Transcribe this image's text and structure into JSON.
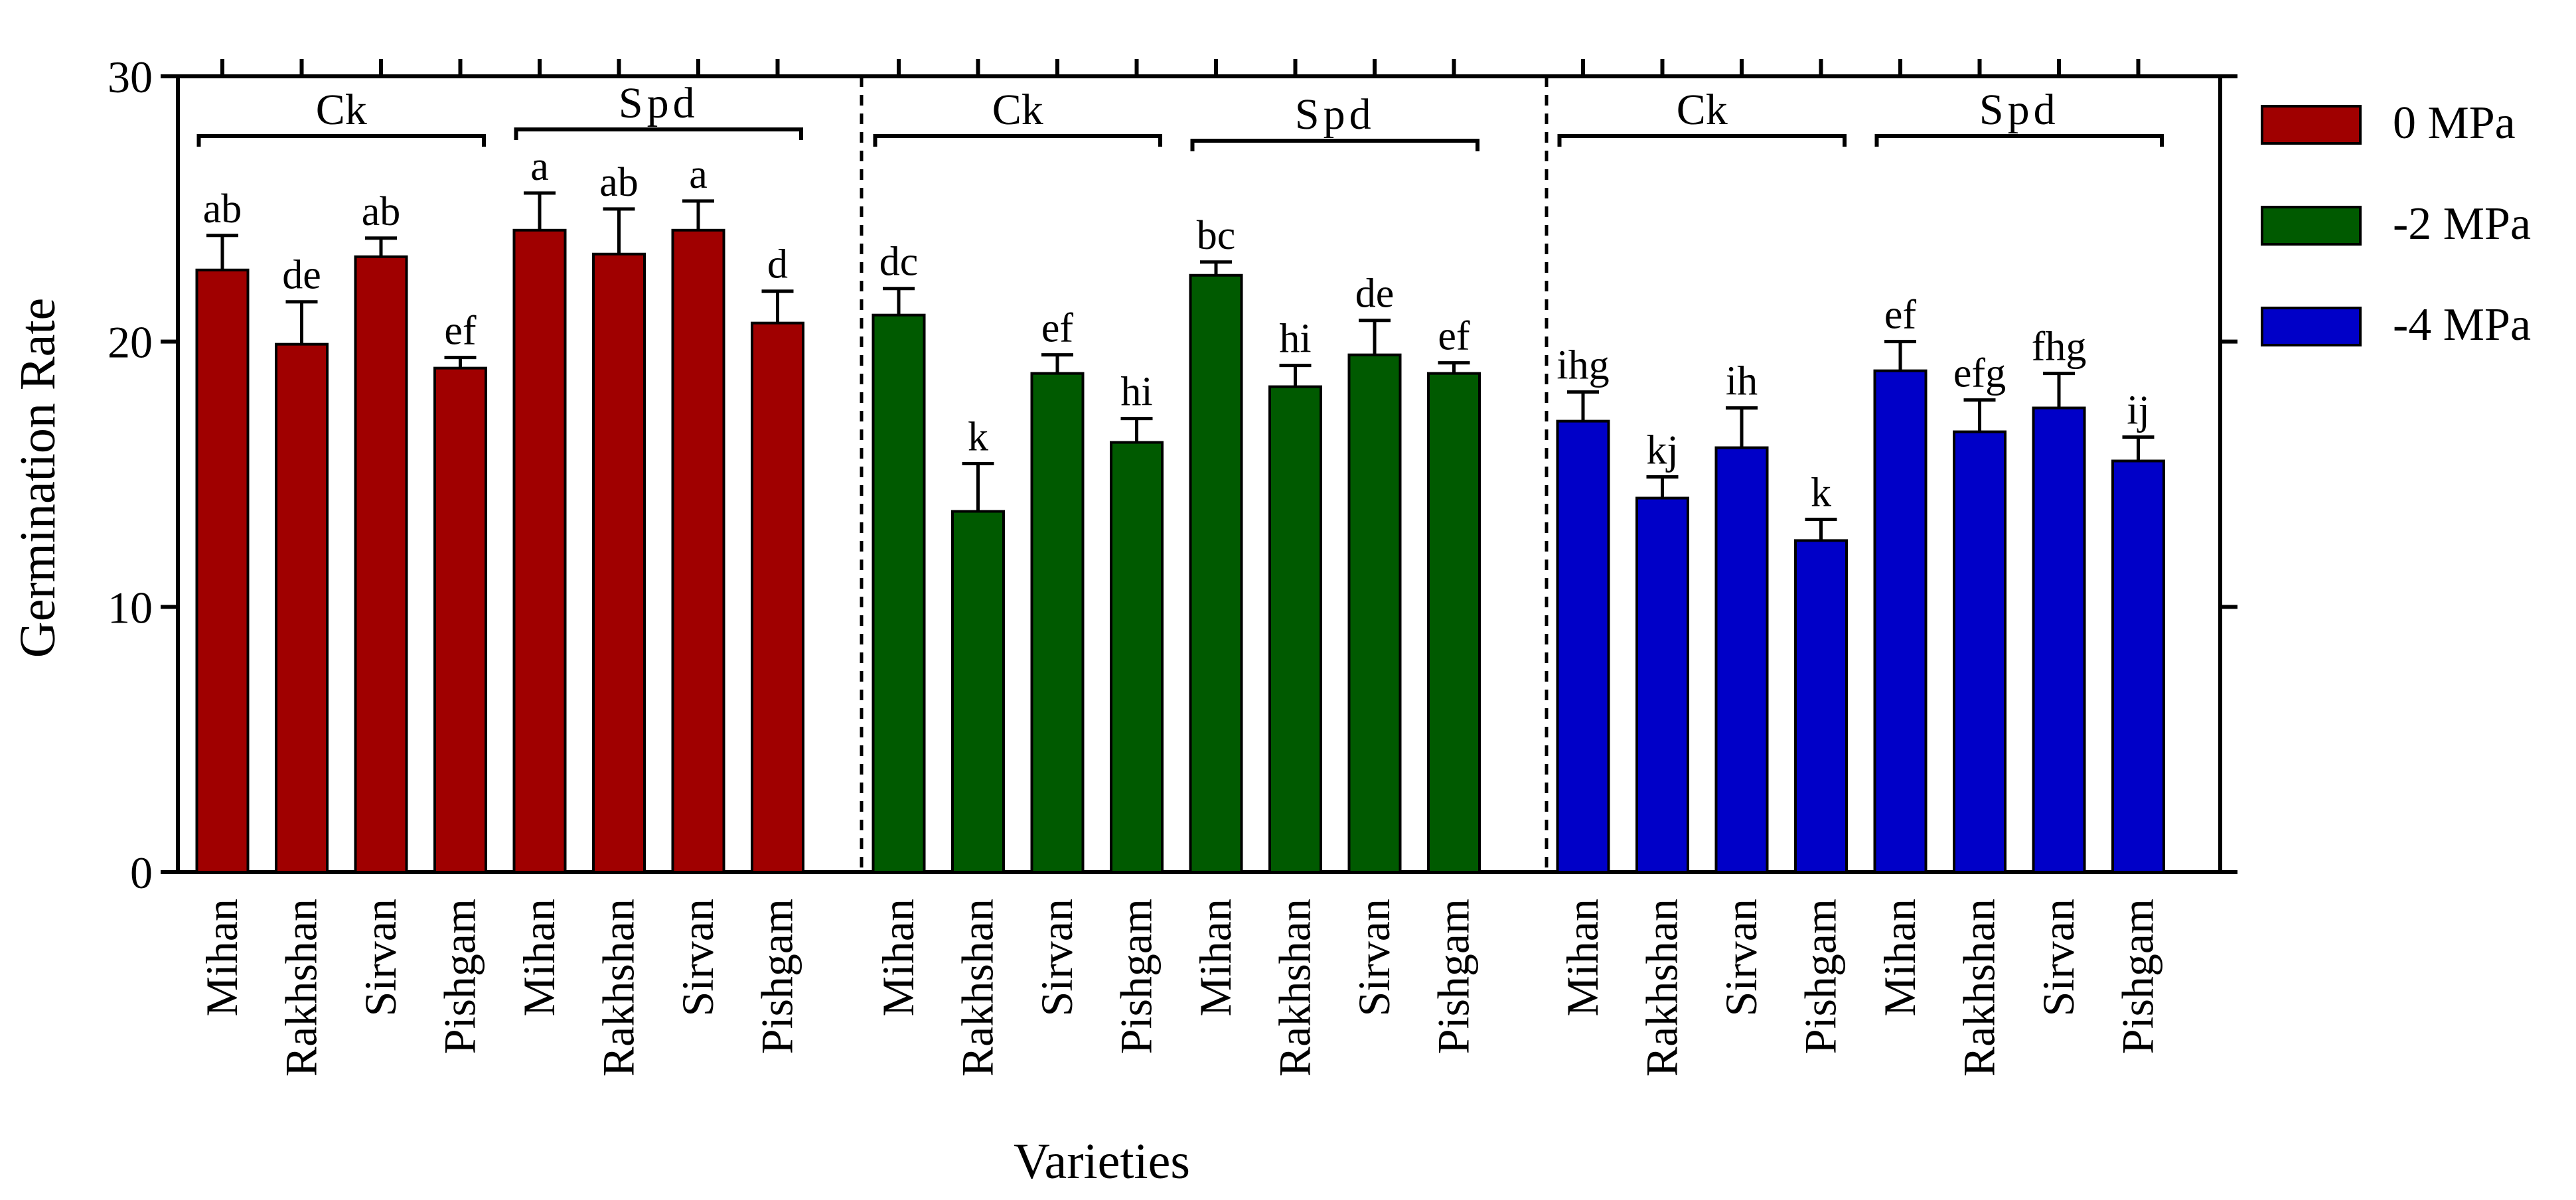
{
  "chart_data": {
    "type": "bar",
    "title": "",
    "ylabel": "Germination Rate",
    "xlabel": "Varieties",
    "ylim": [
      0,
      30
    ],
    "yticks": [
      0,
      10,
      20,
      30
    ],
    "grid": false,
    "legend_position": "top-right",
    "categories": [
      "Mihan",
      "Rakhshan",
      "Sirvan",
      "Pishgam"
    ],
    "treatment_labels": [
      "Ck",
      "Spd"
    ],
    "colors": {
      "0 MPa": "#a00000",
      "-2 MPa": "#005a00",
      "-4 MPa": "#0000c8"
    },
    "series": [
      {
        "name": "0 MPa",
        "groups": [
          {
            "treatment": "Ck",
            "values": [
              22.7,
              19.9,
              23.2,
              19.0
            ],
            "errors": [
              1.3,
              1.6,
              0.7,
              0.4
            ],
            "letters": [
              "ab",
              "de",
              "ab",
              "ef"
            ]
          },
          {
            "treatment": "Spd",
            "values": [
              24.2,
              23.3,
              24.2,
              20.7
            ],
            "errors": [
              1.4,
              1.7,
              1.1,
              1.2
            ],
            "letters": [
              "a",
              "ab",
              "a",
              "d"
            ]
          }
        ]
      },
      {
        "name": "-2 MPa",
        "groups": [
          {
            "treatment": "Ck",
            "values": [
              21.0,
              13.6,
              18.8,
              16.2
            ],
            "errors": [
              1.0,
              1.8,
              0.7,
              0.9
            ],
            "letters": [
              "dc",
              "k",
              "ef",
              "hi"
            ]
          },
          {
            "treatment": "Spd",
            "values": [
              22.5,
              18.3,
              19.5,
              18.8
            ],
            "errors": [
              0.5,
              0.8,
              1.3,
              0.4
            ],
            "letters": [
              "bc",
              "hi",
              "de",
              "ef"
            ]
          }
        ]
      },
      {
        "name": "-4 MPa",
        "groups": [
          {
            "treatment": "Ck",
            "values": [
              17.0,
              14.1,
              16.0,
              12.5
            ],
            "errors": [
              1.1,
              0.8,
              1.5,
              0.8
            ],
            "letters": [
              "ihg",
              "kj",
              "ih",
              "k"
            ]
          },
          {
            "treatment": "Spd",
            "values": [
              18.9,
              16.6,
              17.5,
              15.5
            ],
            "errors": [
              1.1,
              1.2,
              1.3,
              0.9
            ],
            "letters": [
              "ef",
              "efg",
              "fhg",
              "ij"
            ]
          }
        ]
      }
    ]
  }
}
